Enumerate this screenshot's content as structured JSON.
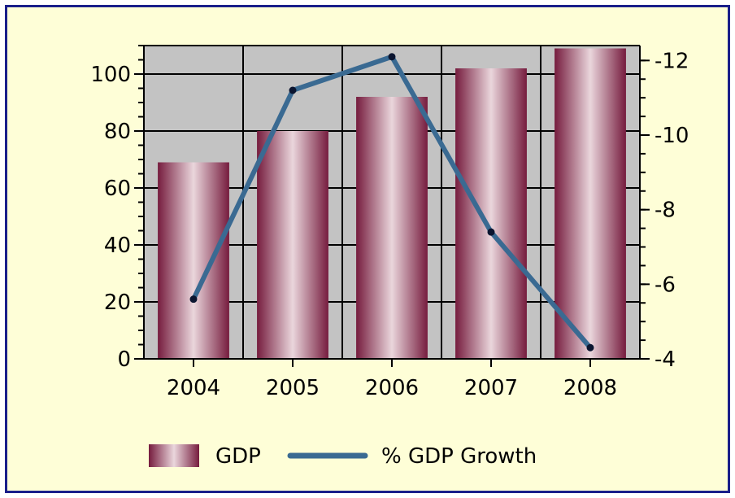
{
  "chart_data": {
    "type": "bar",
    "title": "",
    "categories": [
      "2004",
      "2005",
      "2006",
      "2007",
      "2008"
    ],
    "series": [
      {
        "name": "GDP",
        "type": "bar",
        "axis": "left",
        "values": [
          69,
          80,
          92,
          102,
          109
        ]
      },
      {
        "name": "% GDP Growth",
        "type": "line",
        "axis": "right",
        "values": [
          5.6,
          11.2,
          12.1,
          7.4,
          4.3
        ]
      }
    ],
    "y_left": {
      "min": 0,
      "max": 110,
      "ticks": [
        0,
        20,
        40,
        60,
        80,
        100
      ]
    },
    "y_right": {
      "min": 4,
      "max": 12.4,
      "ticks": [
        4,
        6,
        8,
        10,
        12
      ]
    },
    "grid": true,
    "legend_position": "bottom-left",
    "colors": {
      "frame_border": "#1a1f8a",
      "frame_background": "#fefed7",
      "plot_background": "#c3c3c3",
      "grid": "#000000",
      "bar_dark": "#761c3e",
      "bar_light": "#ead6dc",
      "line": "#3a6a92",
      "marker": "#0b1530"
    }
  }
}
